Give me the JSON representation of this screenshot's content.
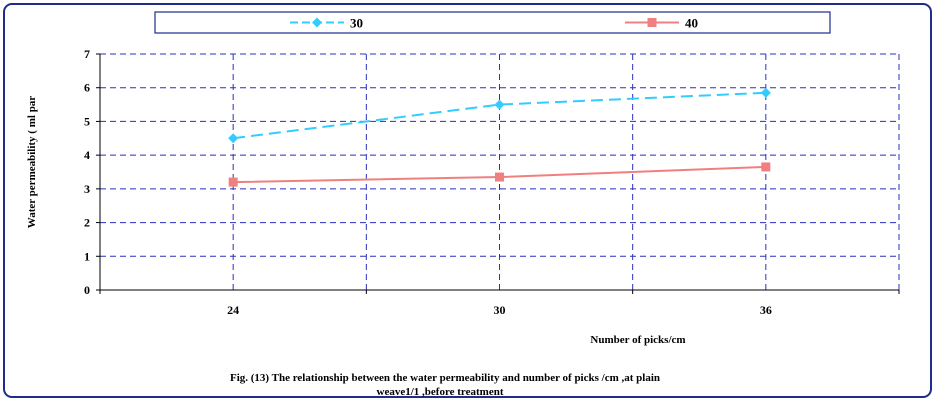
{
  "chart_data": {
    "type": "line",
    "categories": [
      "24",
      "30",
      "36"
    ],
    "series": [
      {
        "name": "30",
        "values": [
          4.5,
          5.5,
          5.85
        ],
        "color": "#33ccff",
        "dash": "dashed",
        "marker": "diamond"
      },
      {
        "name": "40",
        "values": [
          3.2,
          3.35,
          3.65
        ],
        "color": "#f08080",
        "dash": "solid",
        "marker": "square"
      }
    ],
    "ylabel": "Water permeability ( ml par",
    "xlabel": "Number of picks/cm",
    "ylim": [
      0,
      7
    ],
    "yticks": [
      "0",
      "1",
      "2",
      "3",
      "4",
      "5",
      "6",
      "7"
    ],
    "grid": true,
    "legend_position": "top",
    "caption_line1": "Fig. (13) The relationship between  the water permeability  and number of picks /cm  ,at plain",
    "caption_line2": "weave1/1 ,before treatment"
  }
}
